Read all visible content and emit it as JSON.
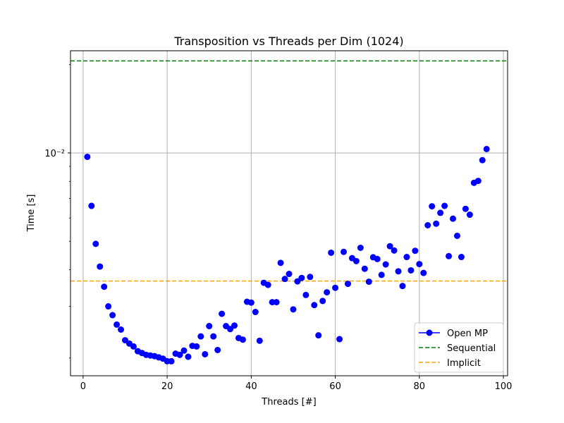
{
  "chart_data": {
    "type": "scatter",
    "title": "Transposition vs Threads per Dim (1024)",
    "xlabel": "Threads [#]",
    "ylabel": "Time [s]",
    "xlim": [
      -3,
      101
    ],
    "ylim": [
      0.00174,
      0.0223
    ],
    "yscale": "log",
    "grid": true,
    "legend_position": "lower-right",
    "x_ticks": [
      0,
      20,
      40,
      60,
      80,
      100
    ],
    "x_tick_labels": [
      "0",
      "20",
      "40",
      "60",
      "80",
      "100"
    ],
    "y_ticks": [
      0.01
    ],
    "y_tick_labels": [
      "10⁻²"
    ],
    "series": [
      {
        "name": "Open MP",
        "style": "marker",
        "color": "#0000ff",
        "x": [
          1,
          2,
          3,
          4,
          5,
          6,
          7,
          8,
          9,
          10,
          11,
          12,
          13,
          14,
          15,
          16,
          17,
          18,
          19,
          20,
          21,
          22,
          23,
          24,
          25,
          26,
          27,
          28,
          29,
          30,
          31,
          32,
          33,
          34,
          35,
          36,
          37,
          38,
          39,
          40,
          41,
          42,
          43,
          44,
          45,
          46,
          47,
          48,
          49,
          50,
          51,
          52,
          53,
          54,
          55,
          56,
          57,
          58,
          59,
          60,
          61,
          62,
          63,
          64,
          65,
          66,
          67,
          68,
          69,
          70,
          71,
          72,
          73,
          74,
          75,
          76,
          77,
          78,
          79,
          80,
          81,
          82,
          83,
          84,
          85,
          86,
          87,
          88,
          89,
          90,
          91,
          92,
          93,
          94,
          95,
          96
        ],
        "y": [
          0.0097,
          0.0066,
          0.0049,
          0.0041,
          0.0035,
          0.003,
          0.0028,
          0.0026,
          0.0025,
          0.0023,
          0.00224,
          0.00219,
          0.00211,
          0.00208,
          0.00205,
          0.00204,
          0.00203,
          0.00201,
          0.00199,
          0.00195,
          0.00195,
          0.00207,
          0.00205,
          0.00212,
          0.00202,
          0.0022,
          0.00219,
          0.00237,
          0.00206,
          0.00257,
          0.00237,
          0.00213,
          0.00283,
          0.00257,
          0.00251,
          0.00258,
          0.00234,
          0.00231,
          0.00311,
          0.00309,
          0.00287,
          0.00229,
          0.00361,
          0.00355,
          0.0031,
          0.0031,
          0.00422,
          0.00372,
          0.00387,
          0.00293,
          0.00365,
          0.00375,
          0.00328,
          0.00378,
          0.00303,
          0.00239,
          0.00313,
          0.00335,
          0.00457,
          0.00347,
          0.00232,
          0.0046,
          0.00358,
          0.00438,
          0.00428,
          0.00475,
          0.00403,
          0.00364,
          0.00441,
          0.00435,
          0.00384,
          0.00417,
          0.00481,
          0.00465,
          0.00395,
          0.00352,
          0.00442,
          0.00398,
          0.00464,
          0.00418,
          0.0039,
          0.00567,
          0.00658,
          0.00574,
          0.00625,
          0.0066,
          0.00445,
          0.00597,
          0.00522,
          0.00442,
          0.00645,
          0.00616,
          0.00791,
          0.00803,
          0.00945,
          0.01031
        ]
      },
      {
        "name": "Sequential",
        "style": "dashed",
        "color": "#008000",
        "y": 0.0206
      },
      {
        "name": "Implicit",
        "style": "dashed",
        "color": "#ffa500",
        "y": 0.00366
      }
    ]
  }
}
